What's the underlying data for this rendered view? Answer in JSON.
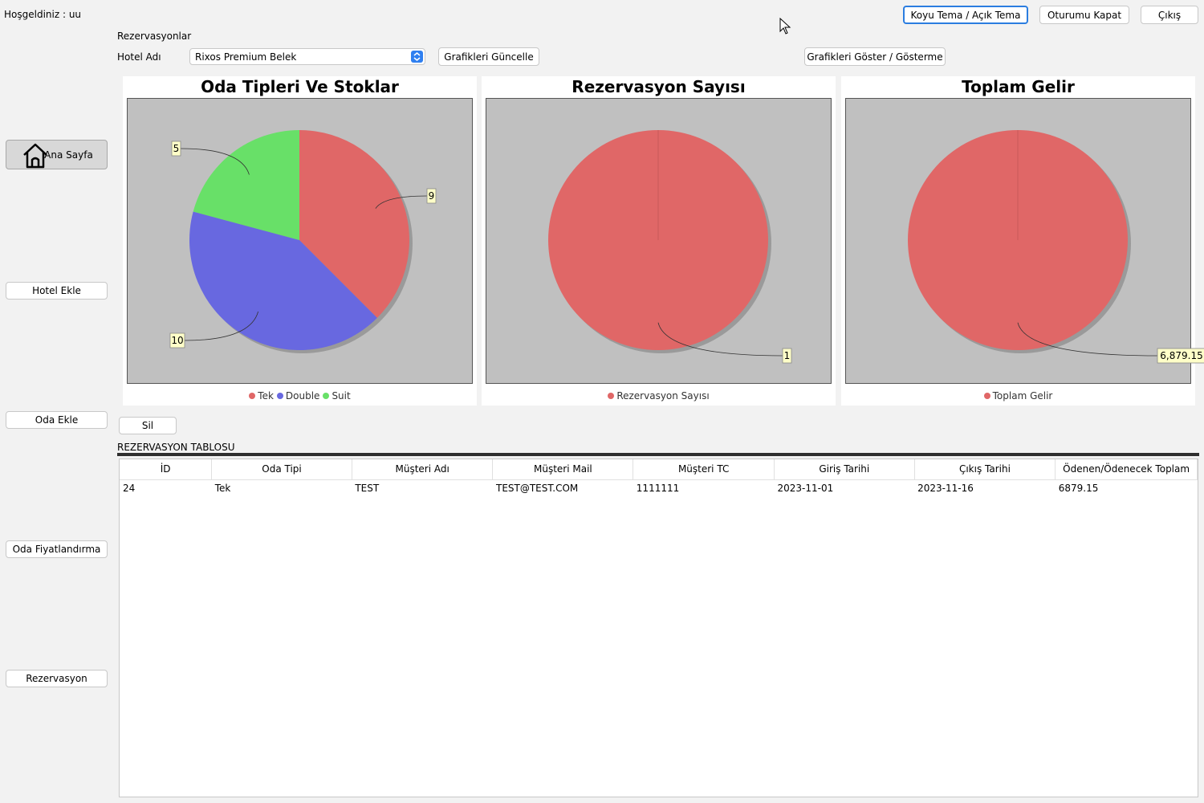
{
  "header": {
    "welcome": "Hoşgeldiniz : uu",
    "theme_button": "Koyu Tema / Açık Tema",
    "logout_button": "Oturumu Kapat",
    "exit_button": "Çıkış"
  },
  "section": {
    "title": "Rezervasyonlar",
    "hotel_label": "Hotel Adı",
    "hotel_selected": "Rixos Premium Belek",
    "refresh_charts_button": "Grafikleri Güncelle",
    "toggle_charts_button": "Grafikleri Göster / Gösterme"
  },
  "sidebar": {
    "items": [
      {
        "label": "Ana Sayfa",
        "icon": "home-icon"
      },
      {
        "label": "Hotel Ekle"
      },
      {
        "label": "Oda Ekle"
      },
      {
        "label": "Oda Fiyatlandırma"
      },
      {
        "label": "Rezervasyon"
      }
    ]
  },
  "chart_data": [
    {
      "type": "pie",
      "title": "Oda Tipleri Ve Stoklar",
      "categories": [
        "Tek",
        "Double",
        "Suit"
      ],
      "values": [
        9,
        10,
        5
      ],
      "labels": [
        "9",
        "10",
        "5"
      ],
      "colors": [
        "#e06767",
        "#6868e0",
        "#68e068"
      ]
    },
    {
      "type": "pie",
      "title": "Rezervasyon Sayısı",
      "categories": [
        "Rezervasyon Sayısı"
      ],
      "values": [
        1
      ],
      "labels": [
        "1"
      ],
      "colors": [
        "#e06767"
      ]
    },
    {
      "type": "pie",
      "title": "Toplam Gelir",
      "categories": [
        "Toplam Gelir"
      ],
      "values": [
        6879.15
      ],
      "labels": [
        "6,879.15"
      ],
      "colors": [
        "#e06767"
      ]
    }
  ],
  "delete_button": "Sil",
  "table": {
    "title": "REZERVASYON TABLOSU",
    "columns": [
      "İD",
      "Oda Tipi",
      "Müşteri Adı",
      "Müşteri Mail",
      "Müşteri TC",
      "Giriş Tarihi",
      "Çıkış Tarihi",
      "Ödenen/Ödenecek Toplam"
    ],
    "rows": [
      [
        "24",
        "Tek",
        "TEST",
        "TEST@TEST.COM",
        "1111111",
        "2023-11-01",
        "2023-11-16",
        "6879.15"
      ]
    ]
  }
}
